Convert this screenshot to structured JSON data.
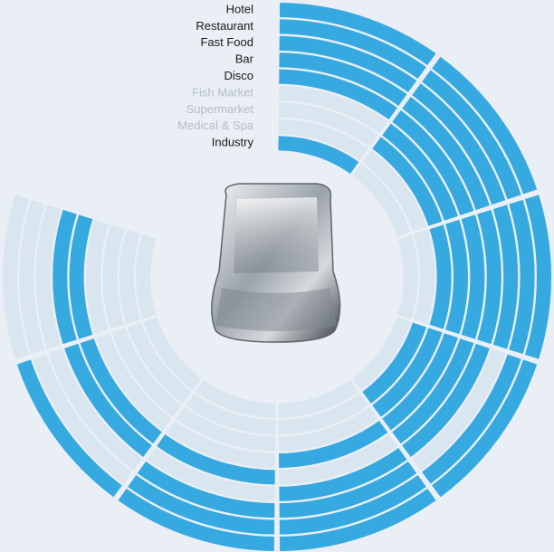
{
  "chart_data": {
    "type": "radial-segments",
    "categories": [
      "Hotel",
      "Restaurant",
      "Fast Food",
      "Bar",
      "Disco",
      "Fish Market",
      "Supermarket",
      "Medical & Spa",
      "Industry"
    ],
    "label_colors": [
      "#1a1a1a",
      "#1a1a1a",
      "#1a1a1a",
      "#1a1a1a",
      "#1a1a1a",
      "#b4bcc6",
      "#b4bcc6",
      "#b4bcc6",
      "#1a1a1a"
    ],
    "segments": [
      [
        1,
        1,
        1,
        1,
        1,
        1,
        1,
        0
      ],
      [
        1,
        1,
        1,
        1,
        1,
        1,
        0,
        0
      ],
      [
        1,
        1,
        1,
        0,
        1,
        1,
        0,
        0
      ],
      [
        1,
        1,
        1,
        1,
        1,
        0,
        1,
        1
      ],
      [
        1,
        1,
        1,
        1,
        0,
        1,
        1,
        1
      ],
      [
        0,
        1,
        1,
        1,
        1,
        0,
        0,
        0
      ],
      [
        0,
        1,
        1,
        1,
        0,
        0,
        0,
        0
      ],
      [
        0,
        0,
        0,
        1,
        0,
        0,
        0,
        0
      ],
      [
        1,
        0,
        0,
        0,
        0,
        0,
        0,
        0
      ]
    ],
    "on_color": "#36a9e1",
    "off_color": "#d9e5ef"
  }
}
